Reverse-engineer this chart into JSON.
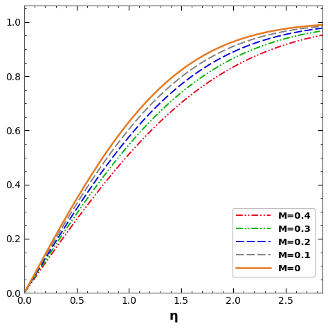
{
  "title": "",
  "xlabel": "η",
  "ylabel": "",
  "xlim": [
    0,
    2.85
  ],
  "ylim": [
    0,
    1.06
  ],
  "xticks": [
    0,
    0.5,
    1.0,
    1.5,
    2.0,
    2.5
  ],
  "yticks": [
    0,
    0.2,
    0.4,
    0.6,
    0.8,
    1.0
  ],
  "curves": [
    {
      "M": 0.4,
      "k": 0.62,
      "color": "#e8001c",
      "linestyle": "dashdotdot",
      "lw": 1.4
    },
    {
      "M": 0.3,
      "k": 0.68,
      "color": "#00b000",
      "linestyle": "dashdotdot",
      "lw": 1.4
    },
    {
      "M": 0.2,
      "k": 0.75,
      "color": "#0000dd",
      "linestyle": "dashed",
      "lw": 1.4
    },
    {
      "M": 0.1,
      "k": 0.82,
      "color": "#808080",
      "linestyle": "dashed",
      "lw": 1.4
    },
    {
      "M": 0.0,
      "k": 0.9,
      "color": "#e87820",
      "linestyle": "solid",
      "lw": 1.8
    }
  ],
  "legend_labels": [
    "M=0.4",
    "M=0.3",
    "M=0.2",
    "M=0.1",
    "M=0"
  ],
  "legend_colors": [
    "#e8001c",
    "#00b000",
    "#0000dd",
    "#808080",
    "#e87820"
  ],
  "legend_linestyles": [
    "dashdotdot",
    "dashdotdot",
    "dashed",
    "dashed",
    "solid"
  ],
  "background_color": "#ffffff",
  "figsize": [
    4.74,
    4.74
  ],
  "dpi": 100
}
